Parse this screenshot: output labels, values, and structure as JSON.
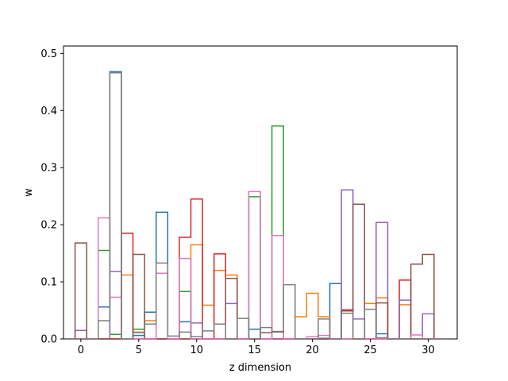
{
  "chart_data": {
    "type": "step",
    "xlabel": "z dimension",
    "ylabel": "w",
    "xlim": [
      -1.5,
      32.5
    ],
    "ylim": [
      0,
      0.513
    ],
    "xticks": [
      0,
      5,
      10,
      15,
      20,
      25,
      30
    ],
    "xtick_labels": [
      "0",
      "5",
      "10",
      "15",
      "20",
      "25",
      "30"
    ],
    "yticks": [
      0.0,
      0.1,
      0.2,
      0.3,
      0.4,
      0.5
    ],
    "ytick_labels": [
      "0.0",
      "0.1",
      "0.2",
      "0.3",
      "0.4",
      "0.5"
    ],
    "bin_edges": [
      -0.5,
      0.5,
      1.5,
      2.5,
      3.5,
      4.5,
      5.5,
      6.5,
      7.5,
      8.5,
      9.5,
      10.5,
      11.5,
      12.5,
      13.5,
      14.5,
      15.5,
      16.5,
      17.5,
      18.5,
      19.5,
      20.5,
      21.5,
      22.5,
      23.5,
      24.5,
      25.5,
      26.5,
      27.5,
      28.5,
      29.5,
      30.5,
      31.5
    ],
    "series": [
      {
        "color": "#1f77b4",
        "values": [
          0,
          0,
          0.056,
          0.468,
          0,
          0.006,
          0.047,
          0.222,
          0,
          0.03,
          0,
          0,
          0,
          0,
          0,
          0.017,
          0,
          0,
          0,
          0,
          0,
          0.001,
          0.097,
          0,
          0,
          0,
          0.009,
          0,
          0,
          0,
          0,
          0
        ]
      },
      {
        "color": "#ff7f0e",
        "values": [
          0,
          0,
          0,
          0,
          0.112,
          0.012,
          0.032,
          0,
          0,
          0,
          0.165,
          0.059,
          0.12,
          0.112,
          0,
          0,
          0,
          0,
          0,
          0.039,
          0.08,
          0.039,
          0,
          0,
          0,
          0.062,
          0.072,
          0,
          0.06,
          0,
          0,
          0
        ]
      },
      {
        "color": "#2ca02c",
        "values": [
          0,
          0,
          0.155,
          0.008,
          0,
          0.017,
          0,
          0,
          0,
          0.083,
          0,
          0,
          0,
          0,
          0,
          0.249,
          0,
          0.373,
          0,
          0,
          0,
          0,
          0,
          0,
          0,
          0,
          0,
          0,
          0,
          0,
          0,
          0
        ]
      },
      {
        "color": "#d62728",
        "values": [
          0,
          0,
          0,
          0,
          0.185,
          0,
          0,
          0,
          0,
          0.178,
          0.245,
          0,
          0.149,
          0,
          0,
          0,
          0,
          0,
          0,
          0,
          0,
          0,
          0,
          0.051,
          0,
          0,
          0,
          0,
          0.103,
          0,
          0,
          0
        ]
      },
      {
        "color": "#9467bd",
        "values": [
          0.015,
          0,
          0,
          0.118,
          0,
          0,
          0,
          0,
          0,
          0,
          0.028,
          0,
          0,
          0.062,
          0,
          0,
          0,
          0,
          0,
          0,
          0,
          0,
          0,
          0.261,
          0.035,
          0,
          0.204,
          0,
          0.068,
          0,
          0.044,
          0
        ]
      },
      {
        "color": "#8c564b",
        "values": [
          0.168,
          0,
          0,
          0,
          0,
          0.148,
          0,
          0,
          0,
          0,
          0,
          0,
          0,
          0.106,
          0,
          0,
          0.011,
          0.013,
          0,
          0,
          0,
          0,
          0,
          0.049,
          0.236,
          0,
          0.063,
          0,
          0,
          0.131,
          0.148,
          0
        ]
      },
      {
        "color": "#e377c2",
        "values": [
          0,
          0,
          0.212,
          0.073,
          0,
          0,
          0,
          0.115,
          0,
          0.141,
          0,
          0,
          0,
          0,
          0,
          0.258,
          0,
          0.181,
          0,
          0,
          0.004,
          0.006,
          0,
          0,
          0,
          0,
          0,
          0,
          0,
          0.007,
          0,
          0
        ]
      },
      {
        "color": "#7f7f7f",
        "values": [
          0,
          0,
          0.032,
          0.466,
          0,
          0.011,
          0.026,
          0.133,
          0.005,
          0.012,
          0.004,
          0.014,
          0.026,
          0,
          0.036,
          0,
          0.02,
          0.012,
          0.095,
          0,
          0,
          0.035,
          0,
          0.045,
          0,
          0.052,
          0.002,
          0,
          0,
          0,
          0,
          0
        ]
      }
    ]
  }
}
